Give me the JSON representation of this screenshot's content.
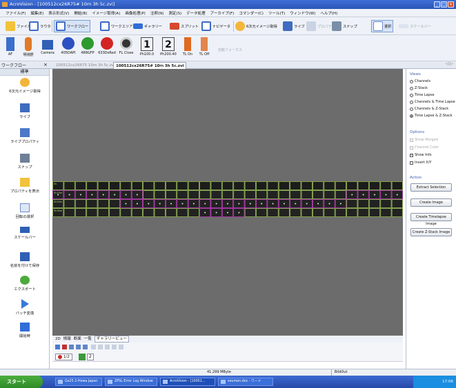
{
  "window": {
    "title": "AcroVision - [100512cx26R75# 10ｍ 3h 5c.zvi]",
    "controls": [
      "_",
      "□",
      "×"
    ]
  },
  "menu": [
    "ファイル(F)",
    "編集(E)",
    "表示形式(V)",
    "開始(B)",
    "イメージ取得(A)",
    "画像処理(P)",
    "注釈(N)",
    "測定(S)",
    "データ処理",
    "アーカイブ(F)",
    "コマンダー(C)",
    "ツール(T)",
    "ウィンドウ(W)",
    "ヘルプ(H)"
  ],
  "toolbar1": {
    "items": [
      "ファイル",
      "ラウタ",
      "ワークフロー",
      "ワークエリア",
      "ギャラリー",
      "スプリット",
      "ナビゲータ",
      "6次元イメージ取得",
      "ライブ",
      "プロパティ",
      "スナップ",
      "選択",
      "スケールバー"
    ]
  },
  "toolbar2": {
    "items": [
      "AF",
      "明視野",
      "Camera",
      "405DAPI",
      "488GFP",
      "633DsRed",
      "FL Close",
      "Ph100.0",
      "Ph200.40",
      "TL On",
      "TL Off"
    ],
    "extra": "自動フォーカス",
    "num_labels": [
      "1",
      "2"
    ]
  },
  "left_tab": {
    "title": "ワークフロー",
    "close": "×"
  },
  "doc_tabs": [
    {
      "label": "100512cx26R75 10m 3h 5c.zvi *",
      "active": false
    },
    {
      "label": "100512cx26R75# 10ｍ 3h 5c.zvi",
      "active": true
    }
  ],
  "tab_right": "◁ ▷",
  "sidebar": {
    "header": "標準",
    "items": [
      "6次元イメージ取得",
      "ライブ",
      "ライブプロパティ",
      "スナップ",
      "プロパティを表示",
      "回転の選択",
      "スケールバー",
      "名前を付けて保存",
      "エクスポート",
      "バッチ変換",
      "開始時"
    ]
  },
  "gallery": {
    "rows": 4,
    "cols": 31,
    "row_labels": [
      "0h",
      "0h10m",
      "0h20m",
      "0h30m"
    ]
  },
  "views": {
    "title": "Views",
    "options": [
      {
        "label": "Channels",
        "on": false
      },
      {
        "label": "Z-Stack",
        "on": false
      },
      {
        "label": "Time Lapse",
        "on": false
      },
      {
        "label": "Channels & Time Lapse",
        "on": false
      },
      {
        "label": "Channels & Z-Stack",
        "on": false
      },
      {
        "label": "Time Lapse & Z-Stack",
        "on": true
      }
    ]
  },
  "options": {
    "title": "Options",
    "items": [
      {
        "label": "Show Merged",
        "checked": false,
        "disabled": true
      },
      {
        "label": "Channel Color",
        "checked": false,
        "disabled": true
      },
      {
        "label": "Show Info",
        "checked": true,
        "disabled": false
      },
      {
        "label": "Invert X/Y",
        "checked": false,
        "disabled": false
      }
    ]
  },
  "action": {
    "title": "Action",
    "buttons": [
      "Extract Selection",
      "Create Image",
      "Create Timelapse Image",
      "Create Z-Stack Image"
    ]
  },
  "bottom_tabs": [
    "2D",
    "情報",
    "断面",
    "一覧",
    "ギャラリービュー"
  ],
  "frame": {
    "value": "1/2",
    "label": "2"
  },
  "status": {
    "memory": "41.299 MByte",
    "mode": "BildOut"
  },
  "taskbar": {
    "start": "スタート",
    "tasks": [
      "Gx25 2-Howa Japan",
      "ZPSL Error Log Window",
      "AcroVision - [10051...",
      "soumen.doc - ワード"
    ],
    "clock": "17:06"
  }
}
